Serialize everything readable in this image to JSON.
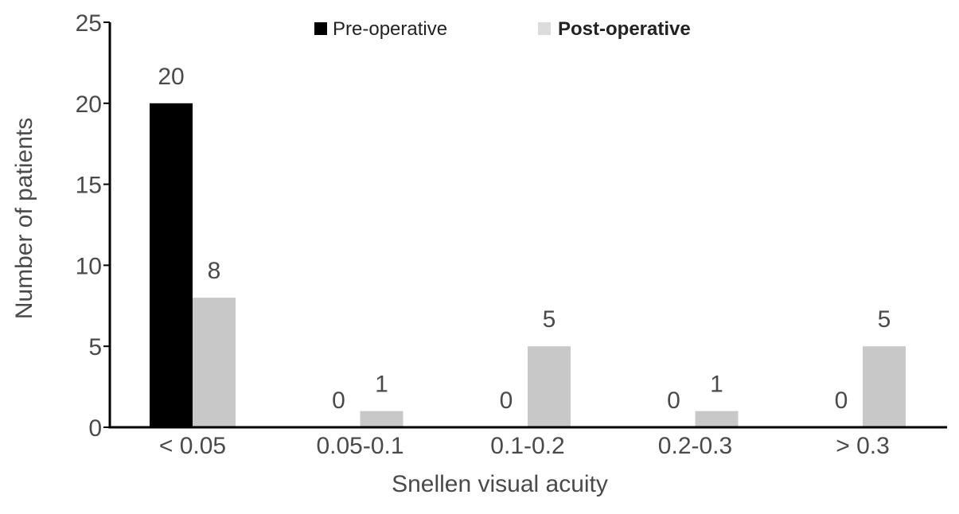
{
  "chart_data": {
    "type": "bar",
    "categories": [
      "< 0.05",
      "0.05-0.1",
      "0.1-0.2",
      "0.2-0.3",
      "> 0.3"
    ],
    "series": [
      {
        "name": "Pre-operative",
        "values": [
          20,
          0,
          0,
          0,
          0
        ],
        "color": "#000000"
      },
      {
        "name": "Post-operative",
        "values": [
          8,
          1,
          5,
          1,
          5
        ],
        "color": "#c8c8c8"
      }
    ],
    "xlabel": "Snellen visual acuity",
    "ylabel": "Number of patients",
    "ylim": [
      0,
      25
    ],
    "yticks": [
      0,
      5,
      10,
      15,
      20,
      25
    ],
    "grid": false,
    "legend_position": "top-center"
  }
}
